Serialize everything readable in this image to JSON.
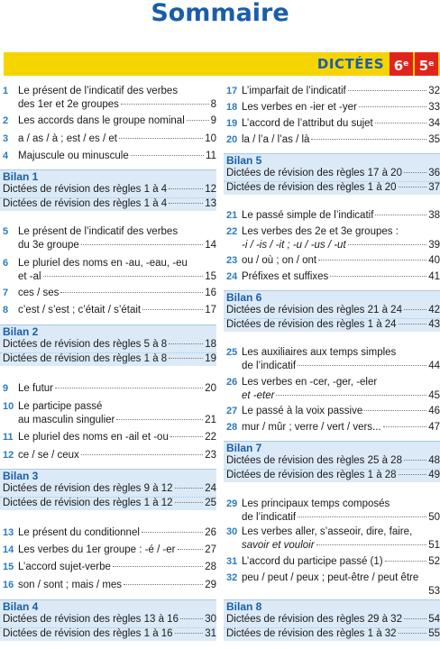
{
  "title": "Sommaire",
  "banner": {
    "label": "DICTÉES",
    "grade_a": "6",
    "grade_b": "5",
    "grade_sup": "e"
  },
  "left": {
    "e1": {
      "num": "1",
      "l1": "Le présent de l’indicatif des verbes",
      "l2": "des 1er et 2e groupes",
      "page": "8"
    },
    "e2": {
      "num": "2",
      "l1": "Les accords dans le groupe nominal",
      "page": "9"
    },
    "e3": {
      "num": "3",
      "l1": "a / as / à ; est / es / et",
      "page": "10"
    },
    "e4": {
      "num": "4",
      "l1": "Majuscule ou minuscule",
      "page": "11"
    },
    "b1": {
      "head": "Bilan 1",
      "r1": "Dictées de révision des règles 1 à 4",
      "p1": "12",
      "r2": "Dictées de révision des règles 1 à 4",
      "p2": "13"
    },
    "e5": {
      "num": "5",
      "l1": "Le présent de l’indicatif des verbes",
      "l2": "du 3e groupe",
      "page": "14"
    },
    "e6": {
      "num": "6",
      "l1": "Le pluriel des noms en -au, -eau, -eu",
      "l2": "et -al",
      "page": "15"
    },
    "e7": {
      "num": "7",
      "l1": "ces / ses",
      "page": "16"
    },
    "e8": {
      "num": "8",
      "l1": "c’est / s’est ; c’était / s’était",
      "page": "17"
    },
    "b2": {
      "head": "Bilan 2",
      "r1": "Dictées de révision des règles 5 à 8",
      "p1": "18",
      "r2": "Dictées de révision des règles 1 à 8",
      "p2": "19"
    },
    "e9": {
      "num": "9",
      "l1": "Le futur",
      "page": "20"
    },
    "e10": {
      "num": "10",
      "l1": "Le participe passé",
      "l2": "au masculin singulier",
      "page": "21"
    },
    "e11": {
      "num": "11",
      "l1": "Le pluriel des noms en -ail et -ou",
      "page": "22"
    },
    "e12": {
      "num": "12",
      "l1": "ce / se / ceux",
      "page": "23"
    },
    "b3": {
      "head": "Bilan 3",
      "r1": "Dictées de révision des règles 9 à 12",
      "p1": "24",
      "r2": "Dictées de révision des règles 1 à 12",
      "p2": "25"
    },
    "e13": {
      "num": "13",
      "l1": "Le présent du conditionnel",
      "page": "26"
    },
    "e14": {
      "num": "14",
      "l1": "Les verbes du 1er groupe : -é / -er",
      "page": "27"
    },
    "e15": {
      "num": "15",
      "l1": "L’accord sujet-verbe",
      "page": "28"
    },
    "e16": {
      "num": "16",
      "l1": "son / sont ; mais / mes",
      "page": "29"
    },
    "b4": {
      "head": "Bilan 4",
      "r1": "Dictées de révision des règles 13 à 16",
      "p1": "30",
      "r2": "Dictées de révision des règles 1 à 16",
      "p2": "31"
    }
  },
  "right": {
    "e17": {
      "num": "17",
      "l1": "L’imparfait de l’indicatif",
      "page": "32"
    },
    "e18": {
      "num": "18",
      "l1": "Les verbes en -ier et -yer",
      "page": "33"
    },
    "e19": {
      "num": "19",
      "l1": "L’accord de l’attribut du sujet",
      "page": "34"
    },
    "e20": {
      "num": "20",
      "l1": "la / l’a / l’as / là",
      "page": "35"
    },
    "b5": {
      "head": "Bilan 5",
      "r1": "Dictées de révision des règles 17 à 20",
      "p1": "36",
      "r2": "Dictées de révision des règles 1 à 20",
      "p2": "37"
    },
    "e21": {
      "num": "21",
      "l1": "Le passé simple de l’indicatif",
      "page": "38"
    },
    "e22": {
      "num": "22",
      "l1": "Les verbes des 2e et 3e groupes :",
      "l2": "-i / -is / -it ; -u / -us / -ut",
      "page": "39"
    },
    "e23": {
      "num": "23",
      "l1": "ou / où ; on / ont",
      "page": "40"
    },
    "e24": {
      "num": "24",
      "l1": "Préfixes et suffixes",
      "page": "41"
    },
    "b6": {
      "head": "Bilan 6",
      "r1": "Dictées de révision des règles 21 à 24",
      "p1": "42",
      "r2": "Dictées de révision des règles 1 à 24",
      "p2": "43"
    },
    "e25": {
      "num": "25",
      "l1": "Les auxiliaires aux temps simples",
      "l2": "de l’indicatif",
      "page": "44"
    },
    "e26": {
      "num": "26",
      "l1": "Les verbes en -cer, -ger, -eler",
      "l2": "et -eter",
      "page": "45"
    },
    "e27": {
      "num": "27",
      "l1": "Le passé à la voix passive",
      "page": "46"
    },
    "e28": {
      "num": "28",
      "l1": "mur / mûr ; verre / vert / vers...",
      "page": "47"
    },
    "b7": {
      "head": "Bilan 7",
      "r1": "Dictées de révision des règles 25 à 28",
      "p1": "48",
      "r2": "Dictées de révision des règles 1 à 28",
      "p2": "49"
    },
    "e29": {
      "num": "29",
      "l1": "Les principaux temps composés",
      "l2": "de l’indicatif",
      "page": "50"
    },
    "e30": {
      "num": "30",
      "l1": "Les verbes aller, s’asseoir, dire, faire,",
      "l2": "savoir et vouloir",
      "page": "51"
    },
    "e31": {
      "num": "31",
      "l1": "L’accord du participe passé (1)",
      "page": "52"
    },
    "e32": {
      "num": "32",
      "l1": "peu / peut / peux ; peut-être / peut être",
      "page": "53"
    },
    "b8": {
      "head": "Bilan 8",
      "r1": "Dictées de révision des règles 29 à 32",
      "p1": "54",
      "r2": "Dictées de révision des règles 1 à 32",
      "p2": "55"
    }
  }
}
